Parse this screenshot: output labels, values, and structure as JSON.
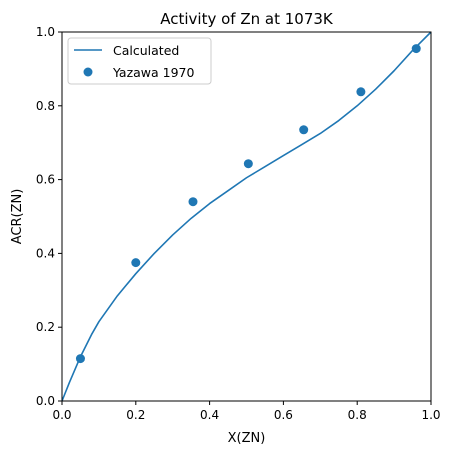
{
  "chart_data": {
    "type": "line",
    "title": "Activity of Zn at 1073K",
    "xlabel": "X(ZN)",
    "ylabel": "ACR(ZN)",
    "xlim": [
      0.0,
      1.0
    ],
    "ylim": [
      0.0,
      1.0
    ],
    "xticks": [
      0.0,
      0.2,
      0.4,
      0.6,
      0.8,
      1.0
    ],
    "yticks": [
      0.0,
      0.2,
      0.4,
      0.6,
      0.8,
      1.0
    ],
    "xtick_labels": [
      "0.0",
      "0.2",
      "0.4",
      "0.6",
      "0.8",
      "1.0"
    ],
    "ytick_labels": [
      "0.0",
      "0.2",
      "0.4",
      "0.6",
      "0.8",
      "1.0"
    ],
    "grid": false,
    "legend_position": "upper-left",
    "color": "#1f77b4",
    "series": [
      {
        "name": "Calculated",
        "kind": "line",
        "x": [
          0.0,
          0.02,
          0.05,
          0.08,
          0.1,
          0.15,
          0.2,
          0.25,
          0.3,
          0.35,
          0.4,
          0.45,
          0.5,
          0.55,
          0.6,
          0.65,
          0.7,
          0.75,
          0.8,
          0.85,
          0.9,
          0.95,
          1.0
        ],
        "y": [
          0.0,
          0.05,
          0.12,
          0.18,
          0.215,
          0.285,
          0.345,
          0.4,
          0.45,
          0.495,
          0.535,
          0.57,
          0.605,
          0.635,
          0.665,
          0.695,
          0.725,
          0.76,
          0.8,
          0.845,
          0.895,
          0.95,
          1.0
        ]
      },
      {
        "name": "Yazawa 1970",
        "kind": "scatter",
        "x": [
          0.05,
          0.2,
          0.355,
          0.505,
          0.655,
          0.81,
          0.96
        ],
        "y": [
          0.115,
          0.375,
          0.54,
          0.643,
          0.735,
          0.838,
          0.955
        ]
      }
    ]
  }
}
